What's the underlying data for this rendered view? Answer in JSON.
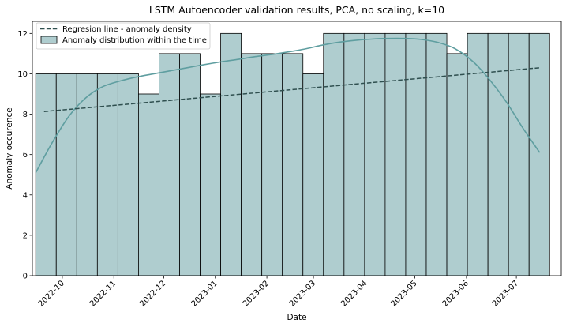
{
  "chart_data": {
    "type": "bar",
    "title": "LSTM Autoencoder validation results, PCA, no scaling, k=10",
    "xlabel": "Date",
    "ylabel": "Anomaly occurence",
    "xlim": [
      "2022-09-13",
      "2023-07-28"
    ],
    "ylim": [
      0,
      12.6
    ],
    "yticks": [
      0,
      2,
      4,
      6,
      8,
      10,
      12
    ],
    "xticks": [
      {
        "date": "2022-10-01",
        "label": "2022-10"
      },
      {
        "date": "2022-11-01",
        "label": "2022-11"
      },
      {
        "date": "2022-12-01",
        "label": "2022-12"
      },
      {
        "date": "2023-01-01",
        "label": "2023-01"
      },
      {
        "date": "2023-02-01",
        "label": "2023-02"
      },
      {
        "date": "2023-03-01",
        "label": "2023-03"
      },
      {
        "date": "2023-04-01",
        "label": "2023-04"
      },
      {
        "date": "2023-05-01",
        "label": "2023-05"
      },
      {
        "date": "2023-06-01",
        "label": "2023-06"
      },
      {
        "date": "2023-07-01",
        "label": "2023-07"
      }
    ],
    "grid": false,
    "legend_position": "top-left",
    "colors": {
      "bar_fill": "#afcdcf",
      "bar_edge": "#000000",
      "kde_line": "#5f9ea0",
      "regression_line": "#2f4f4f"
    },
    "histogram": {
      "name": "Anomaly distribution within the time",
      "bin_start": "2022-09-15",
      "bin_end": "2023-07-21",
      "values": [
        10,
        10,
        10,
        10,
        10,
        9,
        11,
        11,
        9,
        12,
        11,
        11,
        11,
        10,
        12,
        12,
        12,
        12,
        12,
        12,
        11,
        12,
        12,
        12,
        12
      ]
    },
    "regression": {
      "name": "Regresion line - anomaly density",
      "start": {
        "date": "2022-09-20",
        "value": 8.13
      },
      "end": {
        "date": "2023-07-15",
        "value": 10.3
      }
    },
    "kde": {
      "points": [
        {
          "date": "2022-09-15",
          "value": 5.1
        },
        {
          "date": "2022-09-25",
          "value": 6.6
        },
        {
          "date": "2022-10-05",
          "value": 7.9
        },
        {
          "date": "2022-10-15",
          "value": 8.8
        },
        {
          "date": "2022-10-25",
          "value": 9.35
        },
        {
          "date": "2022-11-05",
          "value": 9.65
        },
        {
          "date": "2022-11-15",
          "value": 9.85
        },
        {
          "date": "2022-11-25",
          "value": 10.0
        },
        {
          "date": "2022-12-05",
          "value": 10.15
        },
        {
          "date": "2022-12-15",
          "value": 10.3
        },
        {
          "date": "2022-12-25",
          "value": 10.45
        },
        {
          "date": "2023-01-05",
          "value": 10.6
        },
        {
          "date": "2023-01-15",
          "value": 10.72
        },
        {
          "date": "2023-01-25",
          "value": 10.85
        },
        {
          "date": "2023-02-05",
          "value": 10.97
        },
        {
          "date": "2023-02-15",
          "value": 11.1
        },
        {
          "date": "2023-02-25",
          "value": 11.25
        },
        {
          "date": "2023-03-05",
          "value": 11.4
        },
        {
          "date": "2023-03-15",
          "value": 11.55
        },
        {
          "date": "2023-03-25",
          "value": 11.65
        },
        {
          "date": "2023-04-05",
          "value": 11.72
        },
        {
          "date": "2023-04-15",
          "value": 11.75
        },
        {
          "date": "2023-04-25",
          "value": 11.75
        },
        {
          "date": "2023-05-05",
          "value": 11.7
        },
        {
          "date": "2023-05-15",
          "value": 11.55
        },
        {
          "date": "2023-05-25",
          "value": 11.25
        },
        {
          "date": "2023-06-05",
          "value": 10.6
        },
        {
          "date": "2023-06-15",
          "value": 9.7
        },
        {
          "date": "2023-06-25",
          "value": 8.6
        },
        {
          "date": "2023-07-05",
          "value": 7.3
        },
        {
          "date": "2023-07-15",
          "value": 6.1
        }
      ]
    }
  }
}
